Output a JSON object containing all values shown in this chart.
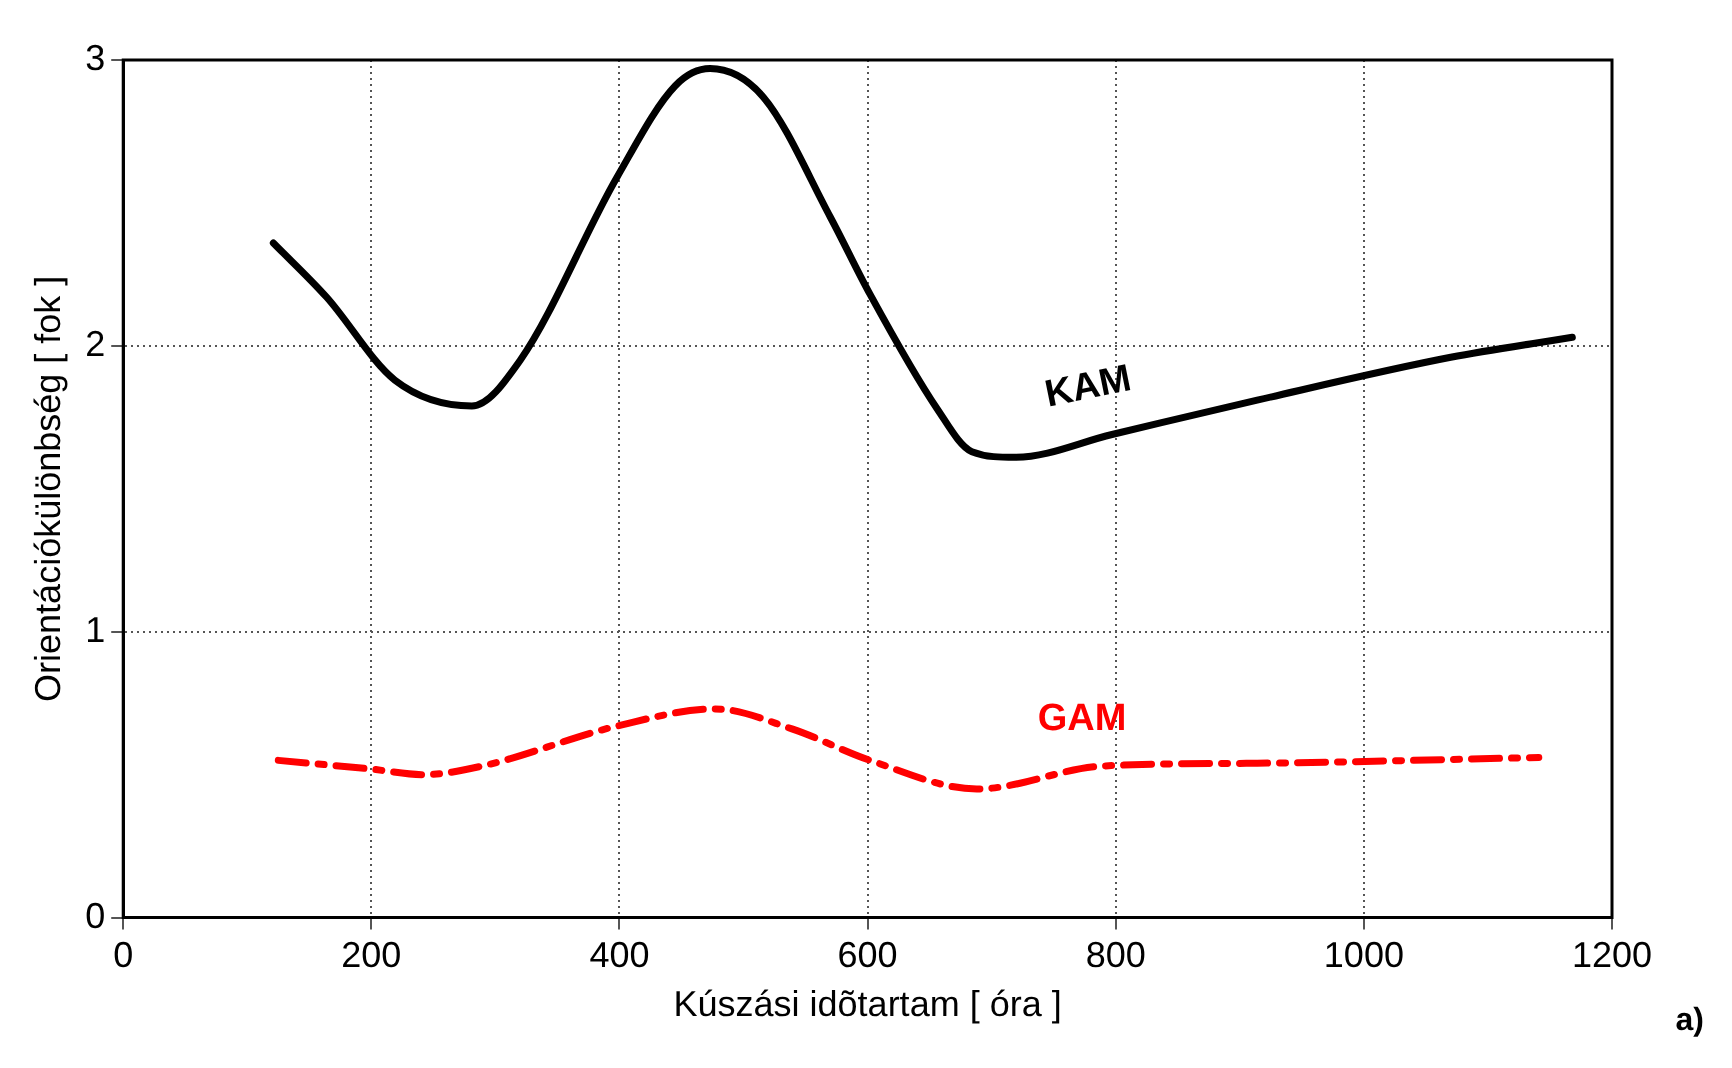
{
  "chart_data": {
    "type": "line",
    "xlabel": "Kúszási idõtartam [ óra ]",
    "ylabel": "Orientációkülönbség [ fok ]",
    "xlim": [
      0,
      1200
    ],
    "xticks": [
      0,
      200,
      400,
      600,
      800,
      1000,
      1200
    ],
    "ylim": [
      0,
      3
    ],
    "yticks": [
      0,
      1,
      2,
      3
    ],
    "grid": true,
    "legend": false,
    "marker": "none",
    "annotations": [
      "a)"
    ],
    "series": [
      {
        "name": "KAM",
        "color": "#000000",
        "line_style": "solid",
        "x": [
          121,
          164,
          219,
          281,
          320,
          398,
          445,
          473,
          516,
          570,
          602,
          656,
          684,
          719,
          797,
          914,
          1070,
          1168
        ],
        "values": [
          2.36,
          2.17,
          1.88,
          1.79,
          1.95,
          2.59,
          2.91,
          2.97,
          2.87,
          2.45,
          2.18,
          1.78,
          1.63,
          1.61,
          1.69,
          1.81,
          1.96,
          2.03
        ]
      },
      {
        "name": "GAM",
        "color": "#ff0000",
        "line_style": "dashed",
        "x": [
          125,
          199,
          242,
          289,
          398,
          477,
          539,
          602,
          688,
          789,
          914,
          1141
        ],
        "values": [
          0.55,
          0.52,
          0.5,
          0.53,
          0.67,
          0.73,
          0.66,
          0.55,
          0.45,
          0.53,
          0.54,
          0.56
        ]
      }
    ]
  }
}
